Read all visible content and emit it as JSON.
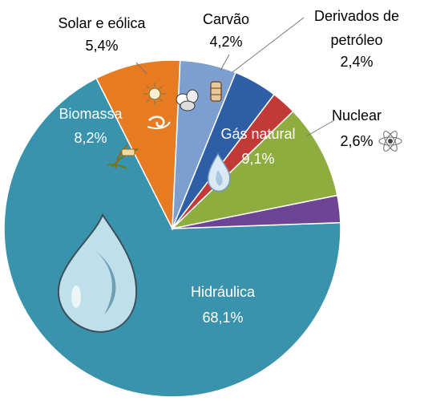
{
  "chart_data": {
    "type": "pie",
    "title": "",
    "slices": [
      {
        "label": "Hidráulica",
        "value": 68.1,
        "value_label": "68,1%",
        "color": "#3a93ac",
        "text_color": "#ffffff"
      },
      {
        "label": "Biomassa",
        "value": 8.2,
        "value_label": "8,2%",
        "color": "#e77b21",
        "text_color": "#ffffff"
      },
      {
        "label": "Solar e eólica",
        "value": 5.4,
        "value_label": "5,4%",
        "color": "#7d9fd0",
        "text_color": "#000000"
      },
      {
        "label": "Carvão",
        "value": 4.2,
        "value_label": "4,2%",
        "color": "#2e5fa6",
        "text_color": "#000000"
      },
      {
        "label": "Derivados de petróleo",
        "label_lines": [
          "Derivados de",
          "petróleo"
        ],
        "value": 2.4,
        "value_label": "2,4%",
        "color": "#c23a37",
        "text_color": "#000000"
      },
      {
        "label": "Gás natural",
        "value": 9.1,
        "value_label": "9,1%",
        "color": "#8fad3e",
        "text_color": "#ffffff"
      },
      {
        "label": "Nuclear",
        "value": 2.6,
        "value_label": "2,6%",
        "color": "#6d4594",
        "text_color": "#000000"
      }
    ],
    "legend": "none"
  }
}
